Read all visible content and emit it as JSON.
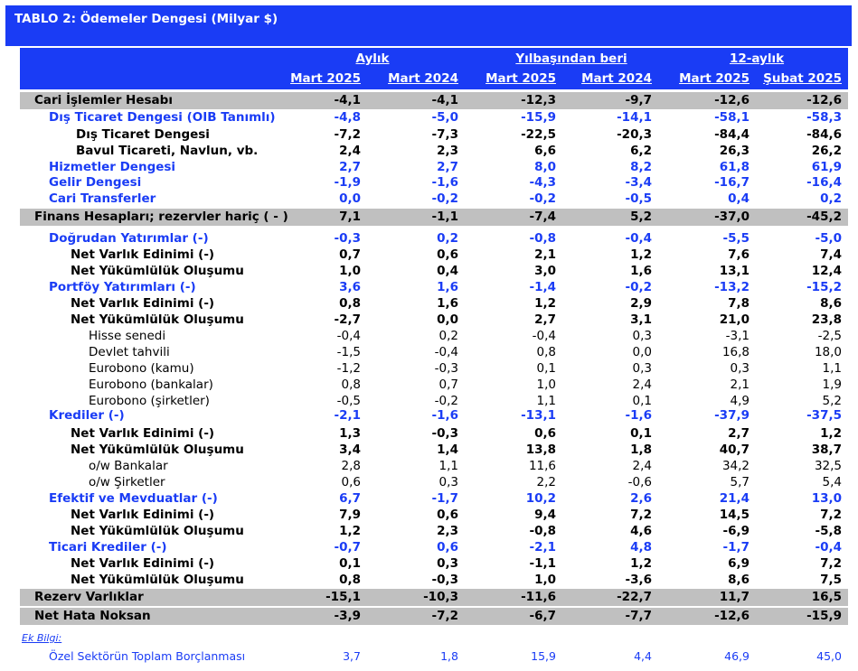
{
  "title": "TABLO 2: Ödemeler Dengesi (Milyar $)",
  "groups": [
    "Aylık",
    "Yılbaşından beri",
    "12-aylık"
  ],
  "columns": [
    "Mart 2025",
    "Mart 2024",
    "Mart 2025",
    "Mart 2024",
    "Mart 2025",
    "Şubat 2025"
  ],
  "rows": [
    {
      "label": "Cari İşlemler Hesabı",
      "style": "shade",
      "values": [
        "-4,1",
        "-4,1",
        "-12,3",
        "-9,7",
        "-12,6",
        "-12,6"
      ]
    },
    {
      "label": "Dış Ticaret Dengesi (OIB Tanımlı)",
      "style": "blue1",
      "values": [
        "-4,8",
        "-5,0",
        "-15,9",
        "-14,1",
        "-58,1",
        "-58,3"
      ]
    },
    {
      "label": "Dış Ticaret Dengesi",
      "style": "sub2",
      "values": [
        "-7,2",
        "-7,3",
        "-22,5",
        "-20,3",
        "-84,4",
        "-84,6"
      ]
    },
    {
      "label": "Bavul Ticareti, Navlun, vb.",
      "style": "sub2",
      "values": [
        "2,4",
        "2,3",
        "6,6",
        "6,2",
        "26,3",
        "26,2"
      ]
    },
    {
      "label": "Hizmetler Dengesi",
      "style": "blue1",
      "values": [
        "2,7",
        "2,7",
        "8,0",
        "8,2",
        "61,8",
        "61,9"
      ]
    },
    {
      "label": "Gelir Dengesi",
      "style": "blue1",
      "values": [
        "-1,9",
        "-1,6",
        "-4,3",
        "-3,4",
        "-16,7",
        "-16,4"
      ]
    },
    {
      "label": "Cari Transferler",
      "style": "blue1",
      "values": [
        "0,0",
        "-0,2",
        "-0,2",
        "-0,5",
        "0,4",
        "0,2"
      ]
    },
    {
      "label": "Finans Hesapları; rezervler hariç ( - )",
      "style": "shade",
      "values": [
        "7,1",
        "-1,1",
        "-7,4",
        "5,2",
        "-37,0",
        "-45,2"
      ]
    },
    {
      "label": "Doğrudan Yatırımlar (-)",
      "style": "blue2",
      "values": [
        "-0,3",
        "0,2",
        "-0,8",
        "-0,4",
        "-5,5",
        "-5,0"
      ]
    },
    {
      "label": "Net Varlık Edinimi (-)",
      "style": "sub3",
      "values": [
        "0,7",
        "0,6",
        "2,1",
        "1,2",
        "7,6",
        "7,4"
      ]
    },
    {
      "label": "Net Yükümlülük Oluşumu",
      "style": "sub3",
      "values": [
        "1,0",
        "0,4",
        "3,0",
        "1,6",
        "13,1",
        "12,4"
      ]
    },
    {
      "label": "Portföy Yatırımları (-)",
      "style": "blue2",
      "values": [
        "3,6",
        "1,6",
        "-1,4",
        "-0,2",
        "-13,2",
        "-15,2"
      ]
    },
    {
      "label": "Net Varlık Edinimi (-)",
      "style": "sub3",
      "values": [
        "0,8",
        "1,6",
        "1,2",
        "2,9",
        "7,8",
        "8,6"
      ]
    },
    {
      "label": "Net Yükümlülük Oluşumu",
      "style": "sub3",
      "values": [
        "-2,7",
        "0,0",
        "2,7",
        "3,1",
        "21,0",
        "23,8"
      ]
    },
    {
      "label": "Hisse senedi",
      "style": "plain",
      "values": [
        "-0,4",
        "0,2",
        "-0,4",
        "0,3",
        "-3,1",
        "-2,5"
      ]
    },
    {
      "label": "Devlet tahvili",
      "style": "plain",
      "values": [
        "-1,5",
        "-0,4",
        "0,8",
        "0,0",
        "16,8",
        "18,0"
      ]
    },
    {
      "label": "Eurobono (kamu)",
      "style": "plain",
      "values": [
        "-1,2",
        "-0,3",
        "0,1",
        "0,3",
        "0,3",
        "1,1"
      ]
    },
    {
      "label": "Eurobono (bankalar)",
      "style": "plain",
      "values": [
        "0,8",
        "0,7",
        "1,0",
        "2,4",
        "2,1",
        "1,9"
      ]
    },
    {
      "label": "Eurobono (şirketler)",
      "style": "plain",
      "values": [
        "-0,5",
        "-0,2",
        "1,1",
        "0,1",
        "4,9",
        "5,2"
      ]
    },
    {
      "label": "Krediler (-)",
      "style": "blue2",
      "values": [
        "-2,1",
        "-1,6",
        "-13,1",
        "-1,6",
        "-37,9",
        "-37,5"
      ]
    },
    {
      "label": "Net Varlık Edinimi (-)",
      "style": "sub3",
      "values": [
        "1,3",
        "-0,3",
        "0,6",
        "0,1",
        "2,7",
        "1,2"
      ]
    },
    {
      "label": "Net Yükümlülük Oluşumu",
      "style": "sub3",
      "values": [
        "3,4",
        "1,4",
        "13,8",
        "1,8",
        "40,7",
        "38,7"
      ]
    },
    {
      "label": "o/w Bankalar",
      "style": "plain",
      "values": [
        "2,8",
        "1,1",
        "11,6",
        "2,4",
        "34,2",
        "32,5"
      ]
    },
    {
      "label": "o/w Şirketler",
      "style": "plain",
      "values": [
        "0,6",
        "0,3",
        "2,2",
        "-0,6",
        "5,7",
        "5,4"
      ]
    },
    {
      "label": "Efektif ve Mevduatlar (-)",
      "style": "blue2",
      "values": [
        "6,7",
        "-1,7",
        "10,2",
        "2,6",
        "21,4",
        "13,0"
      ]
    },
    {
      "label": "Net Varlık Edinimi (-)",
      "style": "sub3",
      "values": [
        "7,9",
        "0,6",
        "9,4",
        "7,2",
        "14,5",
        "7,2"
      ]
    },
    {
      "label": "Net Yükümlülük Oluşumu",
      "style": "sub3",
      "values": [
        "1,2",
        "2,3",
        "-0,8",
        "4,6",
        "-6,9",
        "-5,8"
      ]
    },
    {
      "label": "Ticari Krediler (-)",
      "style": "blue2",
      "values": [
        "-0,7",
        "0,6",
        "-2,1",
        "4,8",
        "-1,7",
        "-0,4"
      ]
    },
    {
      "label": "Net Varlık Edinimi (-)",
      "style": "sub3",
      "values": [
        "0,1",
        "0,3",
        "-1,1",
        "1,2",
        "6,9",
        "7,2"
      ]
    },
    {
      "label": "Net Yükümlülük Oluşumu",
      "style": "sub3",
      "values": [
        "0,8",
        "-0,3",
        "1,0",
        "-3,6",
        "8,6",
        "7,5"
      ]
    },
    {
      "label": "Rezerv Varlıklar",
      "style": "shade",
      "values": [
        "-15,1",
        "-10,3",
        "-11,6",
        "-22,7",
        "11,7",
        "16,5"
      ]
    },
    {
      "label": "Net Hata Noksan",
      "style": "shade",
      "values": [
        "-3,9",
        "-7,2",
        "-6,7",
        "-7,7",
        "-12,6",
        "-15,9"
      ]
    }
  ],
  "note_label": "Ek Bilgi:",
  "extra_row": {
    "label": "Özel Sektörün Toplam Borçlanması",
    "values": [
      "3,7",
      "1,8",
      "15,9",
      "4,4",
      "46,9",
      "45,0"
    ]
  },
  "colors": {
    "header_bg": "#1a3cf5",
    "shade_bg": "#c0c0c0",
    "blue_text": "#1a3cf5"
  }
}
